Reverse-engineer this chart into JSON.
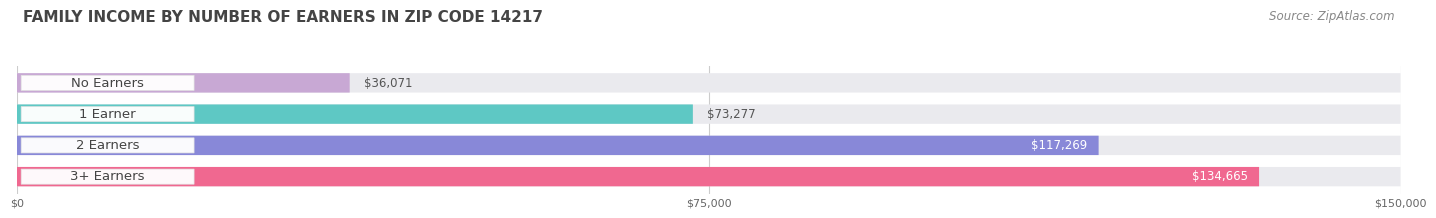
{
  "title": "FAMILY INCOME BY NUMBER OF EARNERS IN ZIP CODE 14217",
  "source": "Source: ZipAtlas.com",
  "categories": [
    "No Earners",
    "1 Earner",
    "2 Earners",
    "3+ Earners"
  ],
  "values": [
    36071,
    73277,
    117269,
    134665
  ],
  "bar_colors": [
    "#c8a8d4",
    "#5ec8c4",
    "#8888d8",
    "#f06890"
  ],
  "bar_bg_color": "#eaeaee",
  "value_labels": [
    "$36,071",
    "$73,277",
    "$117,269",
    "$134,665"
  ],
  "value_inside": [
    false,
    false,
    true,
    true
  ],
  "x_max": 150000,
  "x_ticks": [
    0,
    75000,
    150000
  ],
  "x_tick_labels": [
    "$0",
    "$75,000",
    "$150,000"
  ],
  "bg_color": "#ffffff",
  "title_fontsize": 11,
  "source_fontsize": 8.5,
  "label_fontsize": 9.5,
  "value_fontsize": 8.5
}
